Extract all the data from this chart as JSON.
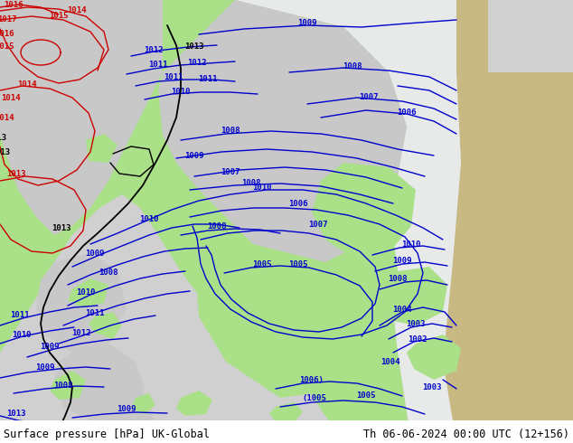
{
  "title_left": "Surface pressure [hPa] UK-Global",
  "title_right": "Th 06-06-2024 00:00 UTC (12+156)",
  "bg_gray": "#d0d0d0",
  "green": "#aae088",
  "light_gray": "#c8c8c8",
  "white_sea": "#e8eaea",
  "tan": "#c8b882",
  "blue": "#0000cc",
  "red": "#cc0000",
  "black": "#000000",
  "footer_fs": 8.5
}
